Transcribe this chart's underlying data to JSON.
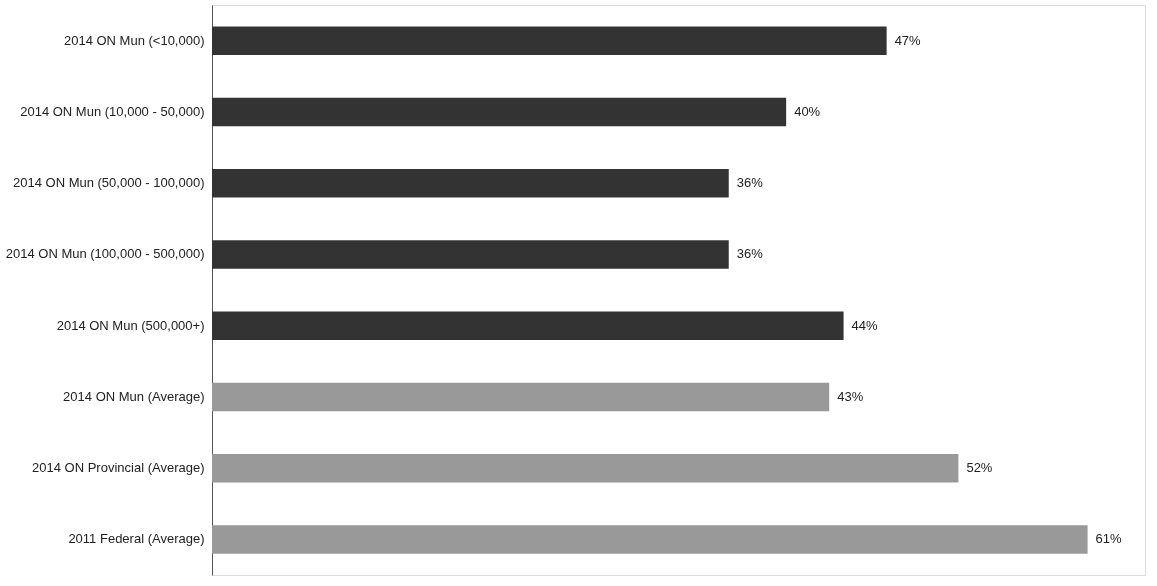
{
  "chart_data": {
    "type": "bar",
    "orientation": "horizontal",
    "categories": [
      "2014 ON Mun (<10,000)",
      "2014 ON Mun (10,000 - 50,000)",
      "2014 ON Mun (50,000 - 100,000)",
      "2014 ON Mun (100,000 - 500,000)",
      "2014 ON Mun (500,000+)",
      "2014 ON Mun (Average)",
      "2014 ON Provincial (Average)",
      "2011 Federal (Average)"
    ],
    "values": [
      47,
      40,
      36,
      36,
      44,
      43,
      52,
      61
    ],
    "colors": [
      "#333333",
      "#333333",
      "#333333",
      "#333333",
      "#333333",
      "#999999",
      "#999999",
      "#999999"
    ],
    "value_labels": [
      "47%",
      "40%",
      "36%",
      "36%",
      "44%",
      "43%",
      "52%",
      "61%"
    ],
    "tick_labels": "y",
    "grid": false
  }
}
